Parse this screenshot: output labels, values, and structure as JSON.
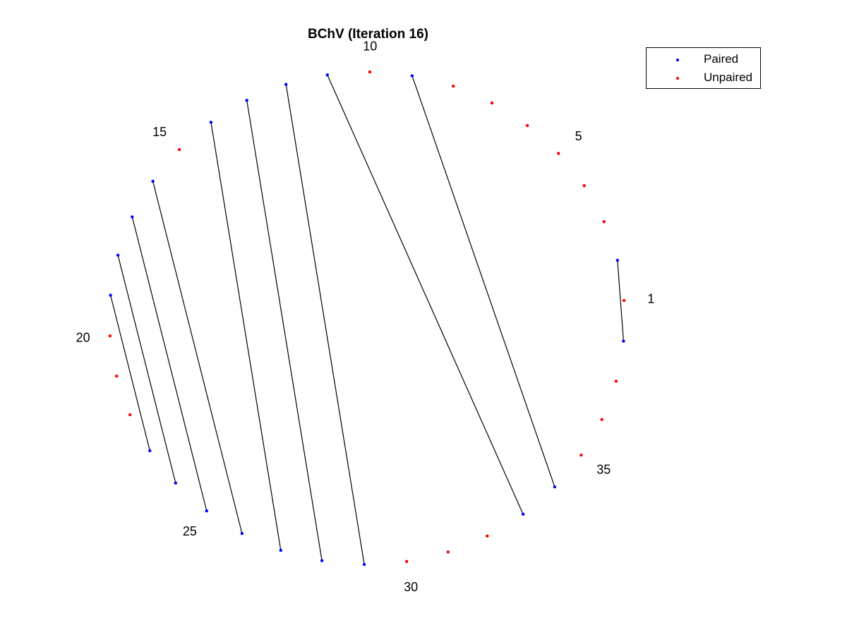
{
  "chart_data": {
    "type": "scatter",
    "title": "BChV (Iteration 16)",
    "n_nodes": 38,
    "node_labels": [
      "1",
      "5",
      "10",
      "15",
      "20",
      "25",
      "30",
      "35"
    ],
    "labeled_nodes": [
      1,
      5,
      10,
      15,
      20,
      25,
      30,
      35
    ],
    "pairs": [
      [
        38,
        2
      ],
      [
        11,
        33
      ],
      [
        12,
        29
      ],
      [
        13,
        28
      ],
      [
        14,
        27
      ],
      [
        16,
        26
      ],
      [
        17,
        25
      ],
      [
        18,
        24
      ],
      [
        19,
        23
      ],
      [
        9,
        34
      ]
    ],
    "series": [
      {
        "name": "Paired",
        "color": "#0000ff",
        "nodes": [
          2,
          9,
          11,
          12,
          13,
          14,
          16,
          17,
          18,
          19,
          23,
          24,
          25,
          26,
          27,
          28,
          29,
          33,
          34,
          38
        ]
      },
      {
        "name": "Unpaired",
        "color": "#ff0000",
        "nodes": [
          1,
          3,
          4,
          5,
          6,
          7,
          8,
          10,
          15,
          20,
          21,
          22,
          30,
          31,
          32,
          35,
          36,
          37
        ]
      }
    ],
    "grid": false,
    "axes_visible": false,
    "legend_position": "top-right",
    "line_color": "#000000"
  }
}
